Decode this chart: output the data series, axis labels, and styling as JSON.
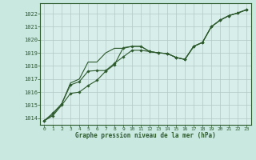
{
  "title": "Graphe pression niveau de la mer (hPa)",
  "bg_color": "#c8e8e0",
  "plot_bg_color": "#d8eeea",
  "grid_color": "#b0c8c4",
  "line_color": "#2d5a2d",
  "border_color": "#2d5a2d",
  "xlim": [
    -0.5,
    23.5
  ],
  "ylim": [
    1013.5,
    1022.8
  ],
  "yticks": [
    1014,
    1015,
    1016,
    1017,
    1018,
    1019,
    1020,
    1021,
    1022
  ],
  "xticks": [
    0,
    1,
    2,
    3,
    4,
    5,
    6,
    7,
    8,
    9,
    10,
    11,
    12,
    13,
    14,
    15,
    16,
    17,
    18,
    19,
    20,
    21,
    22,
    23
  ],
  "series1": [
    1013.8,
    1014.2,
    1015.0,
    1015.9,
    1016.0,
    1016.5,
    1016.9,
    1017.6,
    1018.1,
    1019.4,
    1019.5,
    1019.5,
    1019.1,
    1019.0,
    1018.95,
    1018.65,
    1018.5,
    1019.5,
    1019.8,
    1021.0,
    1021.5,
    1021.85,
    1022.05,
    1022.3
  ],
  "series2": [
    1013.8,
    1014.4,
    1015.1,
    1016.55,
    1016.8,
    1017.6,
    1017.65,
    1017.65,
    1018.2,
    1018.7,
    1019.2,
    1019.2,
    1019.1,
    1019.0,
    1018.95,
    1018.65,
    1018.5,
    1019.5,
    1019.8,
    1021.0,
    1021.5,
    1021.85,
    1022.05,
    1022.3
  ],
  "series3": [
    1013.8,
    1014.3,
    1015.1,
    1016.7,
    1017.0,
    1018.3,
    1018.3,
    1019.0,
    1019.35,
    1019.35,
    1019.5,
    1019.5,
    1019.1,
    1019.0,
    1018.95,
    1018.65,
    1018.5,
    1019.5,
    1019.8,
    1021.0,
    1021.5,
    1021.85,
    1022.05,
    1022.3
  ]
}
